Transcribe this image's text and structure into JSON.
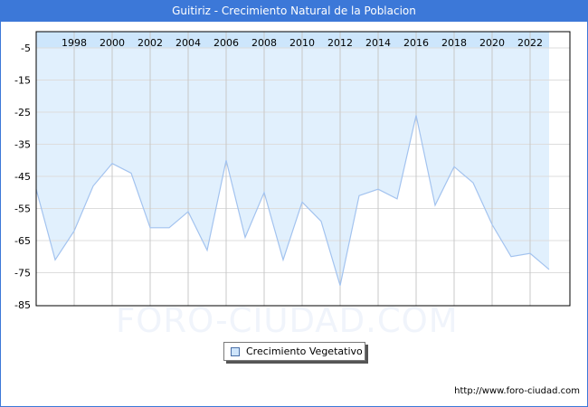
{
  "window": {
    "title": "Guitiriz - Crecimiento Natural de la Poblacion",
    "watermark": "FORO-CIUDAD.COM",
    "footer_url": "http://www.foro-ciudad.com"
  },
  "legend": {
    "items": [
      {
        "label": "Crecimiento Vegetativo",
        "color": "#cfe5fb"
      }
    ]
  },
  "colors": {
    "title_bar": "#3c78d8",
    "fill": "#e1f0fd",
    "header_band": "#cde6fc",
    "line": "#a3c3ef",
    "grid": "#dddddd",
    "vgrid": "#c8c8c8"
  },
  "chart_data": {
    "type": "area",
    "title": "Guitiriz - Crecimiento Natural de la Poblacion",
    "xlabel": "",
    "ylabel": "",
    "ylim": [
      -85,
      -5
    ],
    "yticks": [
      -5,
      -15,
      -25,
      -35,
      -45,
      -55,
      -65,
      -75,
      -85
    ],
    "xticks": [
      "1998",
      "2000",
      "2002",
      "2004",
      "2006",
      "2008",
      "2010",
      "2012",
      "2014",
      "2016",
      "2018",
      "2020",
      "2022"
    ],
    "grid": true,
    "legend_position": "bottom",
    "x": [
      1996,
      1997,
      1998,
      1999,
      2000,
      2001,
      2002,
      2003,
      2004,
      2005,
      2006,
      2007,
      2008,
      2009,
      2010,
      2011,
      2012,
      2013,
      2014,
      2015,
      2016,
      2017,
      2018,
      2019,
      2020,
      2021,
      2022,
      2023
    ],
    "series": [
      {
        "name": "Crecimiento Vegetativo",
        "values": [
          -49,
          -71,
          -62,
          -48,
          -41,
          -44,
          -61,
          -61,
          -56,
          -68,
          -40,
          -64,
          -50,
          -71,
          -53,
          -59,
          -79,
          -51,
          -49,
          -52,
          -26,
          -54,
          -42,
          -47,
          -60,
          -70,
          -69,
          -74
        ]
      }
    ]
  }
}
